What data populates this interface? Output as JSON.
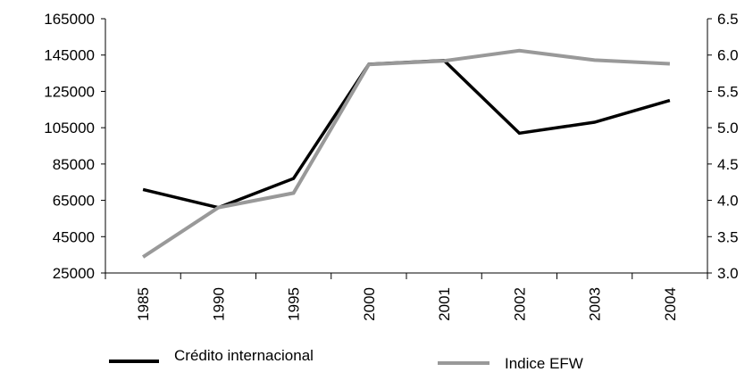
{
  "chart_data": {
    "type": "line",
    "categories": [
      "1985",
      "1990",
      "1995",
      "2000",
      "2001",
      "2002",
      "2003",
      "2004"
    ],
    "y_left": {
      "min": 25000,
      "max": 165000,
      "ticks": [
        "25000",
        "45000",
        "65000",
        "85000",
        "105000",
        "125000",
        "145000",
        "165000"
      ]
    },
    "y_right": {
      "min": 3.0,
      "max": 6.5,
      "ticks": [
        "3.0",
        "3.5",
        "4.0",
        "4.5",
        "5.0",
        "5.5",
        "6.0",
        "6.5"
      ]
    },
    "series": [
      {
        "name": "Crédito internacional",
        "axis": "left",
        "color": "#000000",
        "values": [
          71000,
          61000,
          77000,
          140000,
          142000,
          102000,
          108000,
          120000
        ]
      },
      {
        "name": "Indice EFW",
        "axis": "right",
        "color": "#999999",
        "values": [
          3.22,
          3.9,
          4.1,
          5.87,
          5.92,
          6.06,
          5.93,
          5.88
        ]
      }
    ],
    "legend_position": "bottom",
    "grid": false
  }
}
